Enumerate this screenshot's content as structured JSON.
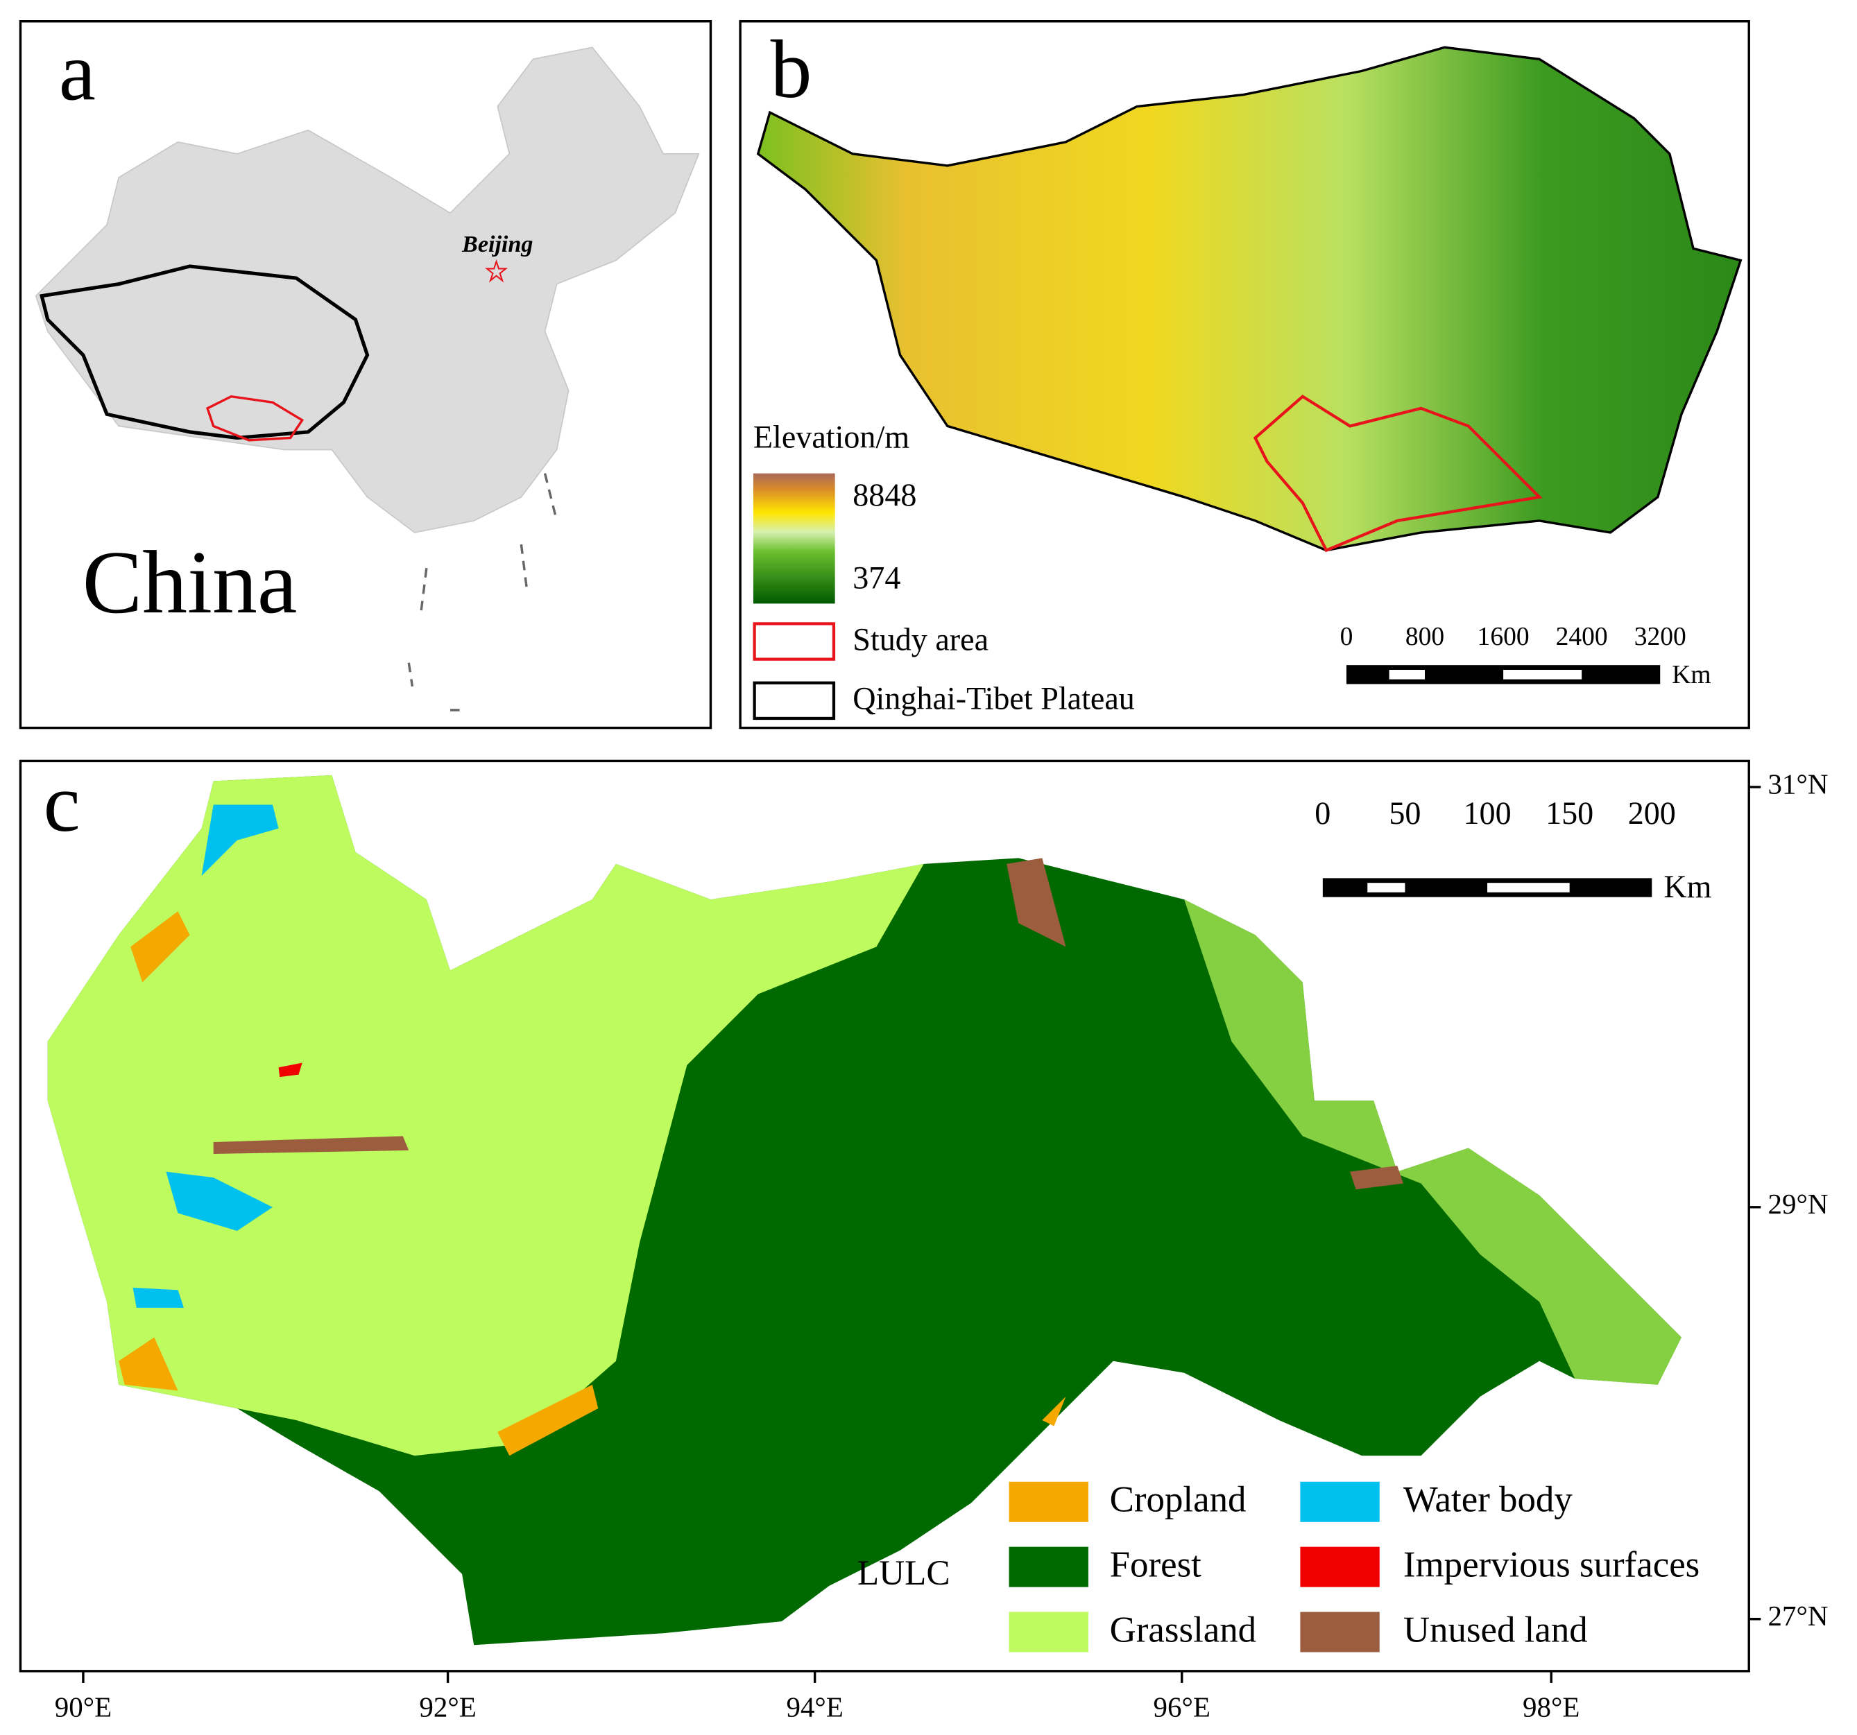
{
  "panel_a": {
    "label": "a",
    "country": "China",
    "city": "Beijing"
  },
  "panel_b": {
    "label": "b",
    "legend_title": "Elevation/m",
    "elevation_max": "8848",
    "elevation_min": "374",
    "legend": [
      {
        "name": "Study area",
        "color": "#e8141c"
      },
      {
        "name": "Qinghai-Tibet Plateau",
        "color": "#000000"
      }
    ],
    "scale_labels": [
      "0",
      "800",
      "1600",
      "2400",
      "3200"
    ],
    "scale_unit": "Km"
  },
  "panel_c": {
    "label": "c",
    "legend_title": "LULC",
    "legend": [
      {
        "name": "Cropland",
        "color": "#f5a800"
      },
      {
        "name": "Forest",
        "color": "#006a00"
      },
      {
        "name": "Grassland",
        "color": "#bdfb5e"
      },
      {
        "name": "Water body",
        "color": "#00c0f0"
      },
      {
        "name": "Impervious surfaces",
        "color": "#f00000"
      },
      {
        "name": "Unused land",
        "color": "#9c5d3f"
      }
    ],
    "scale_labels": [
      "0",
      "50",
      "100",
      "150",
      "200"
    ],
    "scale_unit": "Km",
    "lat_labels": [
      "31°N",
      "29°N",
      "27°N"
    ],
    "lon_labels": [
      "90°E",
      "92°E",
      "94°E",
      "96°E",
      "98°E"
    ]
  }
}
